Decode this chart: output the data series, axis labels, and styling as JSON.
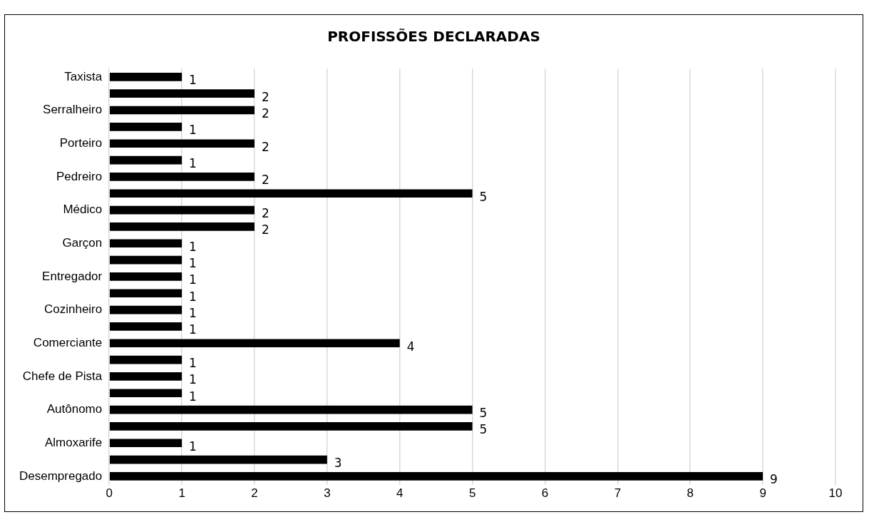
{
  "chart_data": {
    "type": "bar",
    "orientation": "horizontal",
    "title": "PROFISSÕES DECLARADAS",
    "categories": [
      "Taxista",
      null,
      "Serralheiro",
      null,
      "Porteiro",
      null,
      "Pedreiro",
      null,
      "Médico",
      null,
      "Garçon",
      null,
      "Entregador",
      null,
      "Cozinheiro",
      null,
      "Comerciante",
      null,
      "Chefe de Pista",
      null,
      "Autônomo",
      null,
      "Almoxarife",
      null,
      "Desempregado"
    ],
    "values": [
      1,
      2,
      2,
      1,
      2,
      1,
      2,
      5,
      2,
      2,
      1,
      1,
      1,
      1,
      1,
      1,
      4,
      1,
      1,
      1,
      5,
      5,
      1,
      3,
      9
    ],
    "color": "#000000",
    "xlim": [
      0,
      10
    ],
    "xticks": [
      0,
      1,
      2,
      3,
      4,
      5,
      6,
      7,
      8,
      9,
      10
    ],
    "grid": "x",
    "data_labels": true
  }
}
